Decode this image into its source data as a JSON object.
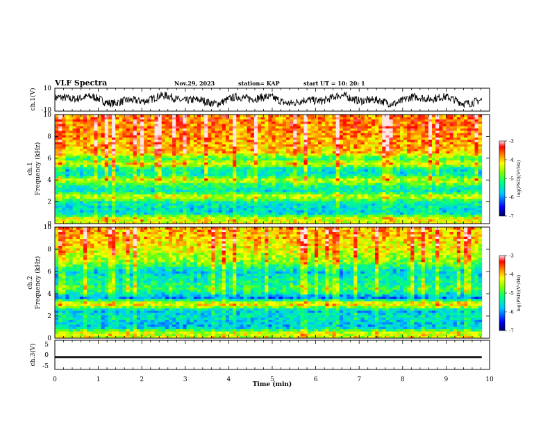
{
  "header": {
    "title": "VLF Spectra",
    "date": "Nov.29, 2023",
    "station": "station= KAP",
    "start": "start  UT =   10: 20: 1"
  },
  "chart_data": [
    {
      "type": "line",
      "panel": "ch1-waveform",
      "ylabel": "ch.1(V)",
      "ylim": [
        -10,
        10
      ],
      "y_tick_labels": [
        "10",
        "-10"
      ],
      "xlim": [
        0,
        10
      ],
      "x_end_min": 9.82,
      "description": "dense oscillating voltage trace centered near 0 V, amplitude mostly within about ±6 V"
    },
    {
      "type": "heatmap",
      "panel": "ch1-spectrogram",
      "ylabel_top": "ch.1",
      "ylabel": "Frequency (kHz)",
      "ylim": [
        0,
        10
      ],
      "y_tick_labels": [
        "0",
        "2",
        "4",
        "6",
        "8",
        "10"
      ],
      "xlim": [
        0,
        10
      ],
      "x_end_min": 9.82,
      "profile_khz": [
        0.0,
        0.5,
        1.0,
        2.0,
        2.5,
        3.0,
        3.5,
        4.0,
        4.5,
        5.0,
        5.5,
        6.0,
        6.5,
        7.0,
        7.5,
        8.0,
        9.0,
        10.0
      ],
      "profile_log_psd": [
        -4.4,
        -4.3,
        -5.7,
        -5.4,
        -4.3,
        -5.5,
        -5.2,
        -4.4,
        -5.4,
        -5.5,
        -4.3,
        -5.1,
        -4.0,
        -4.0,
        -3.9,
        -3.8,
        -3.7,
        -3.7
      ],
      "colorbar": {
        "min": -7,
        "max": -3,
        "ticks": [
          "-3",
          "-4",
          "-5",
          "-6",
          "-7"
        ],
        "label": "log(PSD)(V²/Hz)"
      }
    },
    {
      "type": "heatmap",
      "panel": "ch2-spectrogram",
      "ylabel_top": "ch.2",
      "ylabel": "Frequency (kHz)",
      "ylim": [
        0,
        10
      ],
      "y_tick_labels": [
        "0",
        "2",
        "4",
        "6",
        "8",
        "10"
      ],
      "xlim": [
        0,
        10
      ],
      "x_end_min": 9.82,
      "profile_khz": [
        0.0,
        0.5,
        1.0,
        2.0,
        2.5,
        3.0,
        3.3,
        3.6,
        4.0,
        4.5,
        5.0,
        5.5,
        6.0,
        6.5,
        7.0,
        7.5,
        8.0,
        9.0,
        10.0
      ],
      "profile_log_psd": [
        -4.4,
        -4.4,
        -5.8,
        -5.5,
        -5.8,
        -4.2,
        -4.5,
        -6.1,
        -5.5,
        -5.0,
        -5.3,
        -5.4,
        -5.7,
        -5.1,
        -4.6,
        -4.5,
        -4.3,
        -4.0,
        -3.9
      ],
      "colorbar": {
        "min": -7,
        "max": -3,
        "ticks": [
          "-3",
          "-4",
          "-5",
          "-6",
          "-7"
        ],
        "label": "log(PSD)(V²/Hz)"
      }
    },
    {
      "type": "line",
      "panel": "ch3-waveform",
      "ylabel": "ch.3(V)",
      "ylim": [
        -5,
        5
      ],
      "y_tick_labels": [
        "5",
        "0",
        "-5"
      ],
      "xlim": [
        0,
        10
      ],
      "x_end_min": 9.82,
      "band_y": [
        -1.1,
        -0.5
      ],
      "description": "constant flat trace slightly below 0 V"
    }
  ],
  "x_axis": {
    "label": "Time (min)",
    "ticks": [
      "0",
      "1",
      "2",
      "3",
      "4",
      "5",
      "6",
      "7",
      "8",
      "9",
      "10"
    ]
  },
  "colors": {
    "trace": "#000000",
    "colormap": [
      "#000080",
      "#0000ff",
      "#00c8ff",
      "#00ff80",
      "#80ff00",
      "#ffff00",
      "#ff8000",
      "#ff0000",
      "#ffdddd"
    ]
  }
}
